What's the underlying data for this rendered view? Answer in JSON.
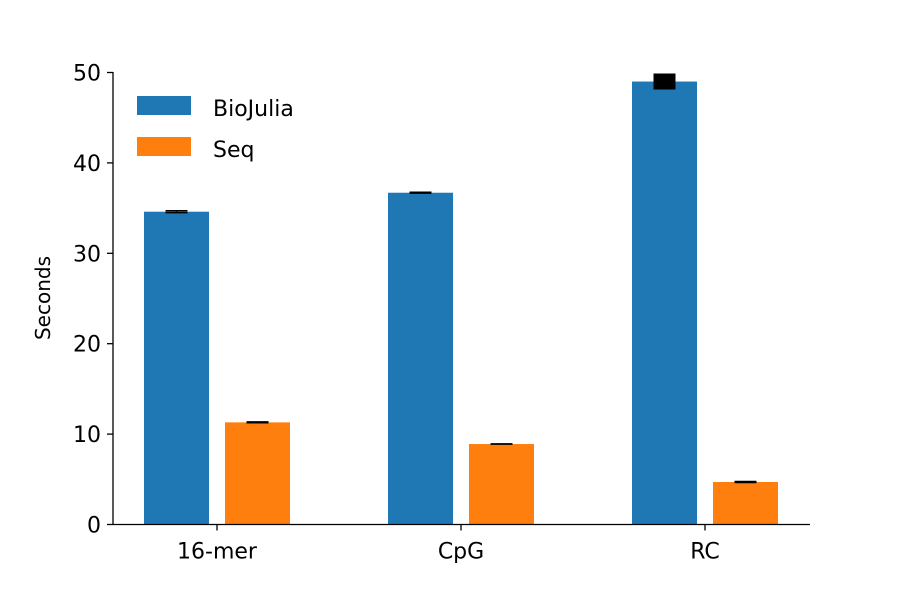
{
  "chart_data": {
    "type": "bar",
    "title": "",
    "xlabel": "",
    "ylabel": "Seconds",
    "ylim": [
      0,
      50
    ],
    "yticks": [
      0,
      10,
      20,
      30,
      40,
      50
    ],
    "categories": [
      "16-mer",
      "CpG",
      "RC"
    ],
    "grid": false,
    "legend_position": "top-left",
    "series": [
      {
        "name": "BioJulia",
        "color": "#1f77b4",
        "values": [
          34.6,
          36.7,
          49.0
        ],
        "errors": [
          0.1,
          0.05,
          0.8
        ]
      },
      {
        "name": "Seq",
        "color": "#ff7f0e",
        "values": [
          11.3,
          8.9,
          4.7
        ],
        "errors": [
          0.05,
          0.0,
          0.05
        ]
      }
    ]
  }
}
